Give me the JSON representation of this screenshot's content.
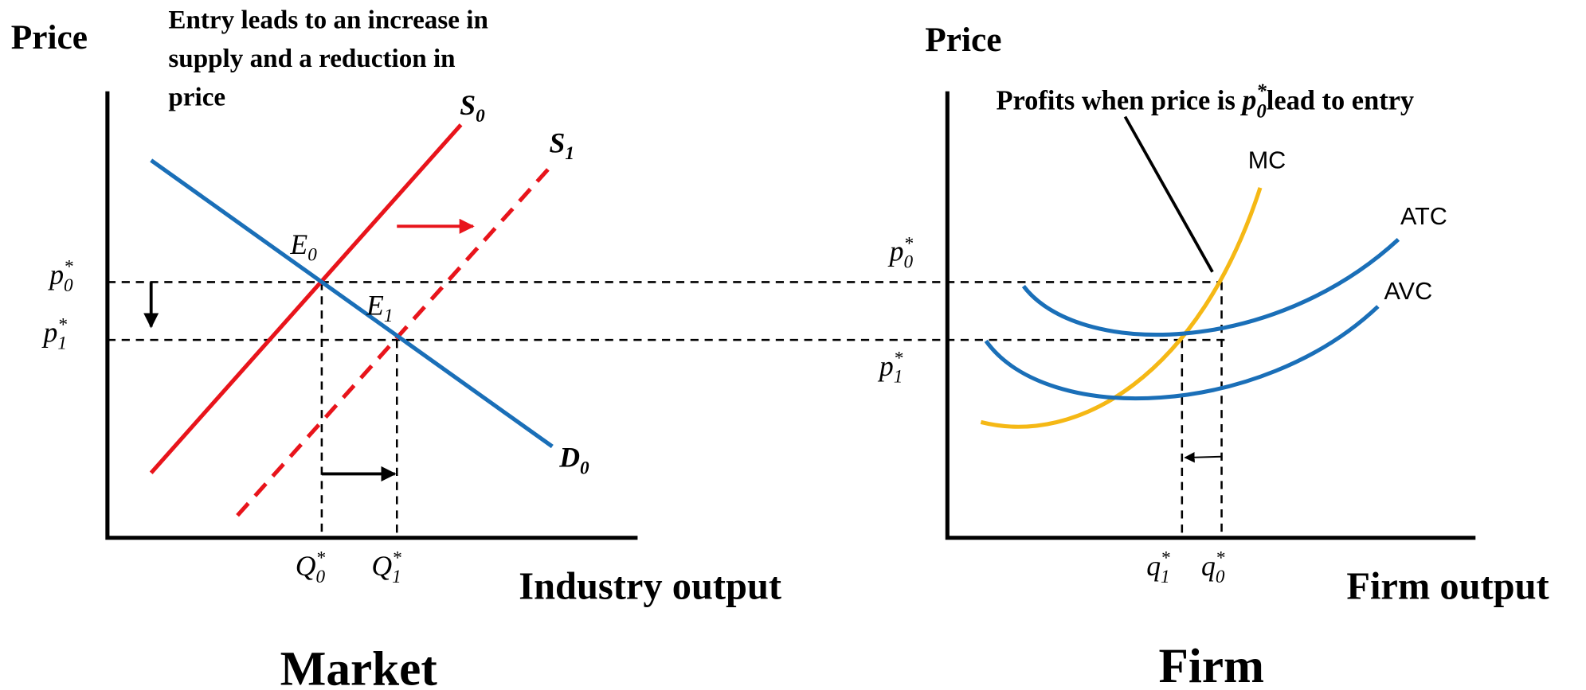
{
  "market": {
    "y_axis_label": "Price",
    "x_axis_label": "Industry output",
    "title": "Market",
    "note": [
      "Entry leads to an increase in",
      "supply and a reduction in",
      "price"
    ],
    "symbols": {
      "S0": {
        "base": "S",
        "sub": "0"
      },
      "S1": {
        "base": "S",
        "sub": "1"
      },
      "D0": {
        "base": "D",
        "sub": "0"
      },
      "E0": {
        "base": "E",
        "sub": "0"
      },
      "E1": {
        "base": "E",
        "sub": "1"
      },
      "p0": {
        "base": "p",
        "sup": "*",
        "sub": "0"
      },
      "p1": {
        "base": "p",
        "sup": "*",
        "sub": "1"
      },
      "Q0": {
        "base": "Q",
        "sup": "*",
        "sub": "0"
      },
      "Q1": {
        "base": "Q",
        "sup": "*",
        "sub": "1"
      }
    }
  },
  "firm": {
    "y_axis_label": "Price",
    "x_axis_label": "Firm output",
    "title": "Firm",
    "note": {
      "prefix": "Profits when price is ",
      "symbol": {
        "base": "p",
        "sup": "*",
        "sub": "0"
      },
      "suffix": "lead to entry"
    },
    "curves": {
      "MC": "MC",
      "ATC": "ATC",
      "AVC": "AVC"
    },
    "symbols": {
      "p0": {
        "base": "p",
        "sup": "*",
        "sub": "0"
      },
      "p1": {
        "base": "p",
        "sup": "*",
        "sub": "1"
      },
      "q1": {
        "base": "q",
        "sup": "*",
        "sub": "1"
      },
      "q0": {
        "base": "q",
        "sup": "*",
        "sub": "0"
      }
    }
  }
}
